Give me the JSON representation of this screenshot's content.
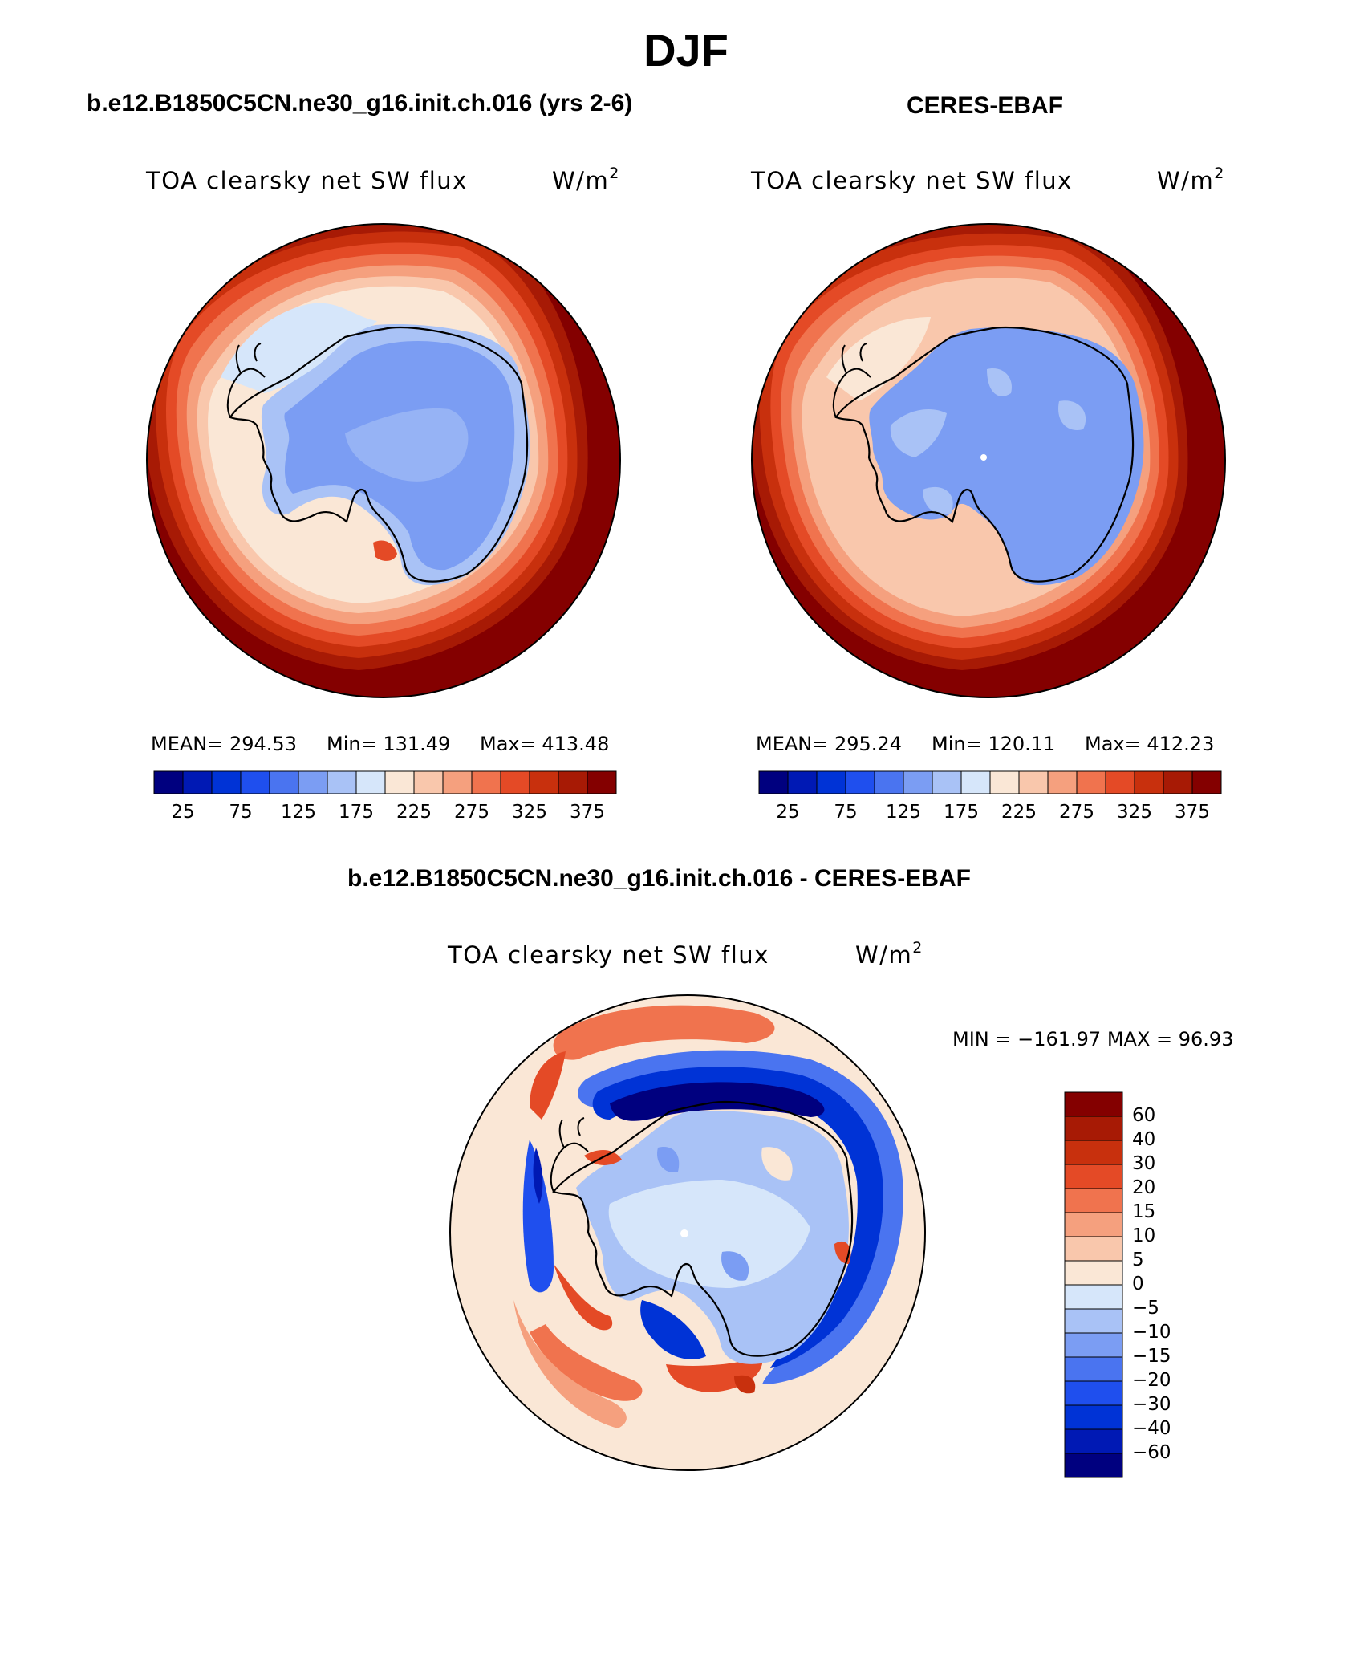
{
  "figure": {
    "season": "DJF",
    "left_title": "b.e12.B1850C5CN.ne30_g16.init.ch.016 (yrs 2-6)",
    "right_title": "CERES-EBAF",
    "diff_title": "b.e12.B1850C5CN.ne30_g16.init.ch.016 - CERES-EBAF"
  },
  "panels": {
    "model": {
      "variable": "TOA clearsky net SW flux",
      "units_base": "W/m",
      "units_exp": "2",
      "mean_text": "MEAN= 294.53",
      "min_text": "Min= 131.49",
      "max_text": "Max= 413.48"
    },
    "obs": {
      "variable": "TOA clearsky net SW flux",
      "units_base": "W/m",
      "units_exp": "2",
      "mean_text": "MEAN= 295.24",
      "min_text": "Min= 120.11",
      "max_text": "Max= 412.23"
    },
    "diff": {
      "variable": "TOA clearsky net SW flux",
      "units_base": "W/m",
      "units_exp": "2",
      "minmax_text": "MIN = −161.97 MAX =   96.93"
    }
  },
  "chart_data": [
    {
      "type": "heatmap",
      "projection": "south-polar-stereographic",
      "title": "b.e12.B1850C5CN.ne30_g16.init.ch.016 (yrs 2-6)",
      "variable": "TOA clearsky net SW flux",
      "units": "W/m2",
      "mean": 294.53,
      "min": 131.49,
      "max": 413.48,
      "contour_levels": [
        25,
        50,
        75,
        100,
        125,
        150,
        175,
        200,
        225,
        250,
        275,
        300,
        325,
        350,
        375
      ],
      "tick_labels": [
        "25",
        "75",
        "125",
        "175",
        "225",
        "275",
        "325",
        "375"
      ],
      "colors": [
        "#00007f",
        "#0019b4",
        "#0033d6",
        "#1f4fee",
        "#4a74f0",
        "#7b9df3",
        "#a9c2f6",
        "#d6e6fa",
        "#fae7d6",
        "#f9c7ac",
        "#f5a07e",
        "#f0734e",
        "#e44a26",
        "#c8300d",
        "#a71a05",
        "#840000"
      ]
    },
    {
      "type": "heatmap",
      "projection": "south-polar-stereographic",
      "title": "CERES-EBAF",
      "variable": "TOA clearsky net SW flux",
      "units": "W/m2",
      "mean": 295.24,
      "min": 120.11,
      "max": 412.23,
      "contour_levels": [
        25,
        50,
        75,
        100,
        125,
        150,
        175,
        200,
        225,
        250,
        275,
        300,
        325,
        350,
        375
      ],
      "tick_labels": [
        "25",
        "75",
        "125",
        "175",
        "225",
        "275",
        "325",
        "375"
      ],
      "colors": [
        "#00007f",
        "#0019b4",
        "#0033d6",
        "#1f4fee",
        "#4a74f0",
        "#7b9df3",
        "#a9c2f6",
        "#d6e6fa",
        "#fae7d6",
        "#f9c7ac",
        "#f5a07e",
        "#f0734e",
        "#e44a26",
        "#c8300d",
        "#a71a05",
        "#840000"
      ]
    },
    {
      "type": "heatmap",
      "projection": "south-polar-stereographic",
      "title": "b.e12.B1850C5CN.ne30_g16.init.ch.016 - CERES-EBAF",
      "variable": "TOA clearsky net SW flux",
      "units": "W/m2",
      "min": -161.97,
      "max": 96.93,
      "contour_levels": [
        -60,
        -40,
        -30,
        -20,
        -15,
        -10,
        -5,
        0,
        5,
        10,
        15,
        20,
        30,
        40,
        60
      ],
      "tick_labels": [
        "60",
        "40",
        "30",
        "20",
        "15",
        "10",
        "5",
        "0",
        "−5",
        "−10",
        "−15",
        "−20",
        "−30",
        "−40",
        "−60"
      ],
      "colors": [
        "#00007f",
        "#0019b4",
        "#0033d6",
        "#1f4fee",
        "#4a74f0",
        "#7b9df3",
        "#a9c2f6",
        "#d6e6fa",
        "#fae7d6",
        "#f9c7ac",
        "#f5a07e",
        "#f0734e",
        "#e44a26",
        "#c8300d",
        "#a71a05",
        "#840000"
      ]
    }
  ]
}
